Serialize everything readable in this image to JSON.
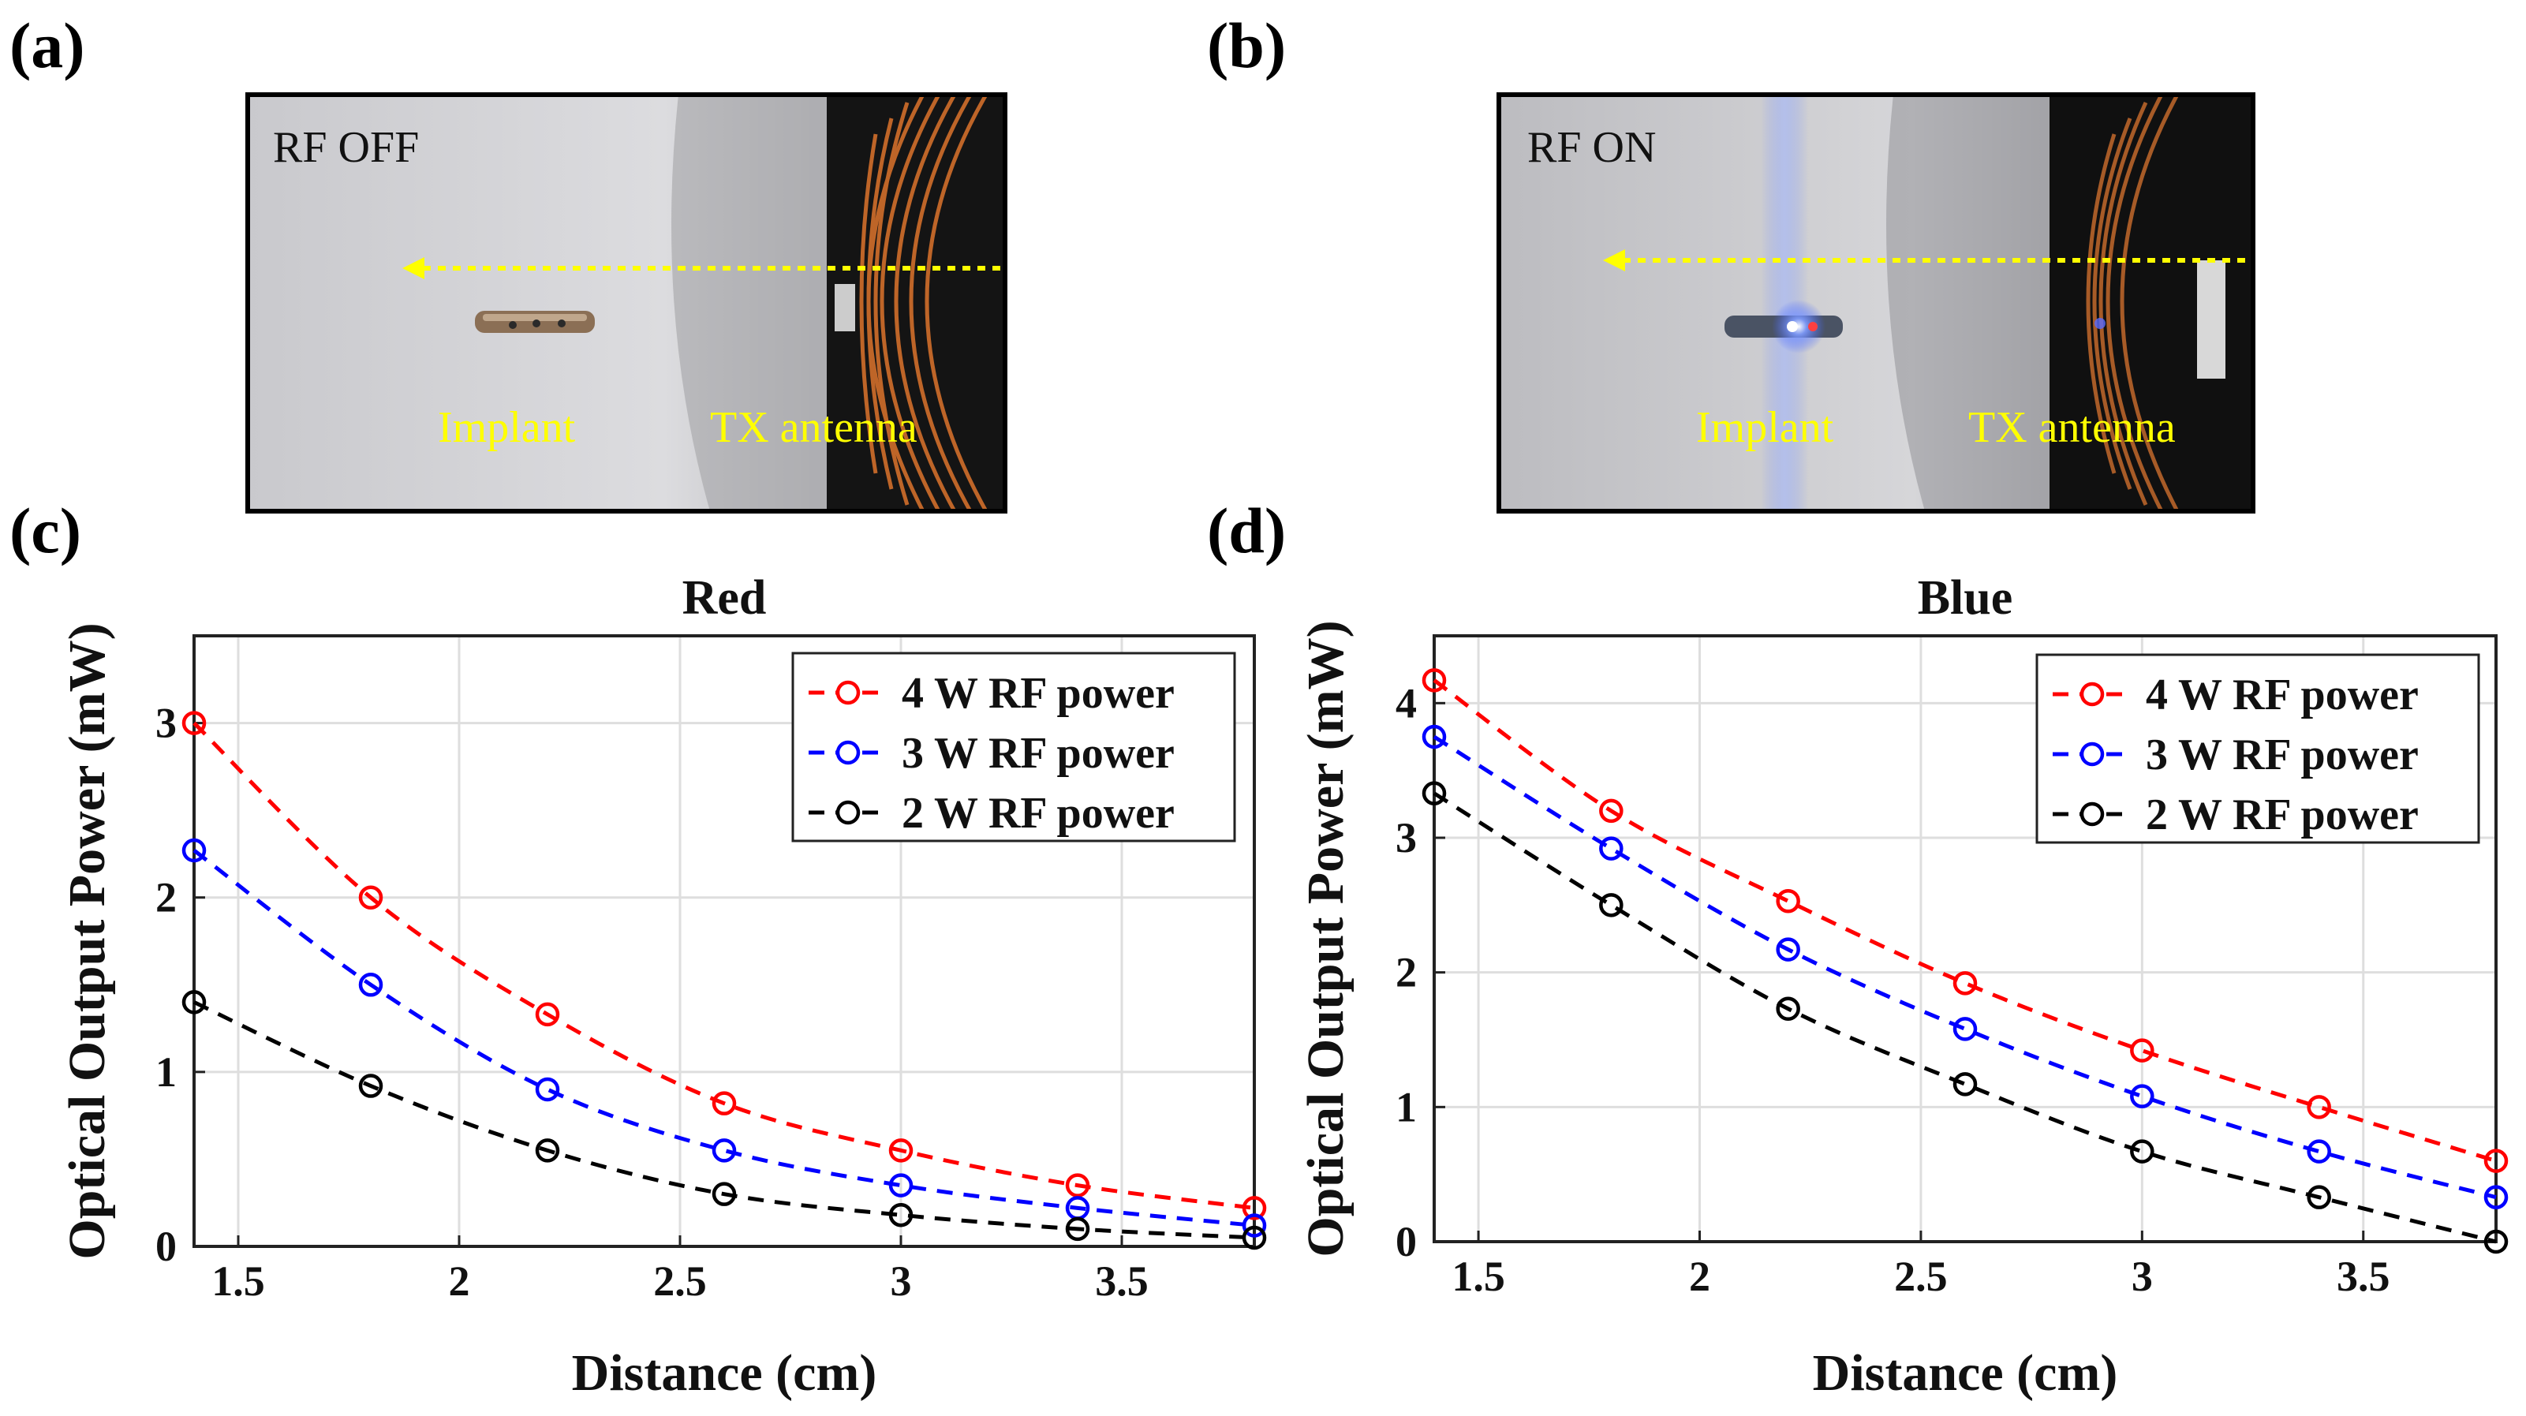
{
  "panels": {
    "a": {
      "label": "(a)",
      "status": "RF OFF",
      "implant_label": "Implant",
      "antenna_label": "TX antenna"
    },
    "b": {
      "label": "(b)",
      "status": "RF ON",
      "implant_label": "Implant",
      "antenna_label": "TX antenna"
    },
    "c": {
      "label": "(c)"
    },
    "d": {
      "label": "(d)"
    }
  },
  "colors": {
    "red_series": "#ff0000",
    "blue_series": "#0000ff",
    "black_series": "#000000",
    "annotation": "#ffff00"
  },
  "chart_data": [
    {
      "type": "line",
      "title": "Red",
      "xlabel": "Distance (cm)",
      "ylabel": "Optical Output Power (mW)",
      "xlim": [
        1.4,
        3.8
      ],
      "ylim": [
        0,
        3.5
      ],
      "xticks": [
        1.5,
        2,
        2.5,
        3,
        3.5
      ],
      "xtick_labels": [
        "1.5",
        "2",
        "2.5",
        "3",
        "3.5"
      ],
      "yticks": [
        0,
        1,
        2,
        3
      ],
      "ytick_labels": [
        "0",
        "1",
        "2",
        "3"
      ],
      "grid": true,
      "legend_position": "top-right",
      "x": [
        1.4,
        1.8,
        2.2,
        2.6,
        3.0,
        3.4,
        3.8
      ],
      "series": [
        {
          "name": "4 W RF power",
          "color": "#ff0000",
          "values": [
            3.0,
            2.0,
            1.33,
            0.82,
            0.55,
            0.35,
            0.22
          ]
        },
        {
          "name": "3 W RF power",
          "color": "#0000ff",
          "values": [
            2.27,
            1.5,
            0.9,
            0.55,
            0.35,
            0.22,
            0.12
          ]
        },
        {
          "name": "2 W RF power",
          "color": "#000000",
          "values": [
            1.4,
            0.92,
            0.55,
            0.3,
            0.18,
            0.1,
            0.05
          ]
        }
      ]
    },
    {
      "type": "line",
      "title": "Blue",
      "xlabel": "Distance (cm)",
      "ylabel": "Optical Output Power (mW)",
      "xlim": [
        1.4,
        3.8
      ],
      "ylim": [
        0,
        4.5
      ],
      "xticks": [
        1.5,
        2,
        2.5,
        3,
        3.5
      ],
      "xtick_labels": [
        "1.5",
        "2",
        "2.5",
        "3",
        "3.5"
      ],
      "yticks": [
        0,
        1,
        2,
        3,
        4
      ],
      "ytick_labels": [
        "0",
        "1",
        "2",
        "3",
        "4"
      ],
      "grid": true,
      "legend_position": "top-right",
      "x": [
        1.4,
        1.8,
        2.2,
        2.6,
        3.0,
        3.4,
        3.8
      ],
      "series": [
        {
          "name": "4 W RF power",
          "color": "#ff0000",
          "values": [
            4.17,
            3.2,
            2.53,
            1.92,
            1.42,
            1.0,
            0.6
          ]
        },
        {
          "name": "3 W RF power",
          "color": "#0000ff",
          "values": [
            3.75,
            2.92,
            2.17,
            1.58,
            1.08,
            0.67,
            0.33
          ]
        },
        {
          "name": "2 W RF power",
          "color": "#000000",
          "values": [
            3.33,
            2.5,
            1.73,
            1.17,
            0.67,
            0.33,
            0.0
          ]
        }
      ]
    }
  ]
}
